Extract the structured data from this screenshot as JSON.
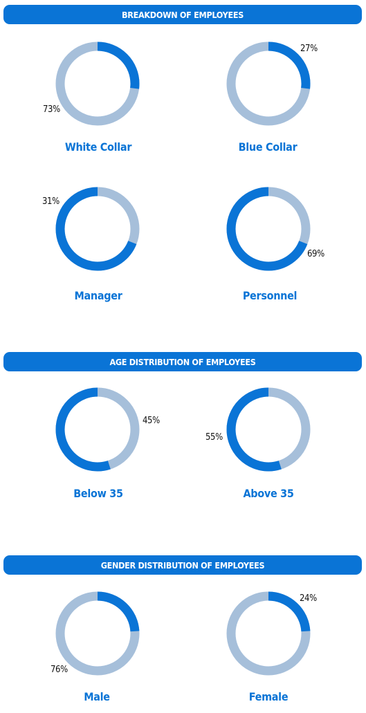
{
  "colors": {
    "accent": "#0a74d6",
    "track": "#a6bfda"
  },
  "sections": [
    {
      "title": "BREAKDOWN OF EMPLOYEES"
    },
    {
      "title": "AGE DISTRIBUTION OF EMPLOYEES"
    },
    {
      "title": "GENDER DISTRIBUTION OF EMPLOYEES"
    }
  ],
  "chart_data": [
    {
      "type": "pie",
      "section": "BREAKDOWN OF EMPLOYEES",
      "label": "White Collar",
      "value": 27,
      "percent_label": "73%"
    },
    {
      "type": "pie",
      "section": "BREAKDOWN OF EMPLOYEES",
      "label": "Blue Collar",
      "value": 27,
      "percent_label": "27%"
    },
    {
      "type": "pie",
      "section": "BREAKDOWN OF EMPLOYEES",
      "label": "Manager",
      "value": 69,
      "percent_label": "31%"
    },
    {
      "type": "pie",
      "section": "BREAKDOWN OF EMPLOYEES",
      "label": "Personnel",
      "value": 69,
      "percent_label": "69%"
    },
    {
      "type": "pie",
      "section": "AGE DISTRIBUTION OF EMPLOYEES",
      "label": "Below 35",
      "value": 55,
      "percent_label": "45%"
    },
    {
      "type": "pie",
      "section": "AGE DISTRIBUTION OF EMPLOYEES",
      "label": "Above 35",
      "value": 55,
      "percent_label": "55%"
    },
    {
      "type": "pie",
      "section": "GENDER DISTRIBUTION OF EMPLOYEES",
      "label": "Male",
      "value": 24,
      "percent_label": "76%"
    },
    {
      "type": "pie",
      "section": "GENDER DISTRIBUTION OF EMPLOYEES",
      "label": "Female",
      "value": 24,
      "percent_label": "24%"
    }
  ]
}
